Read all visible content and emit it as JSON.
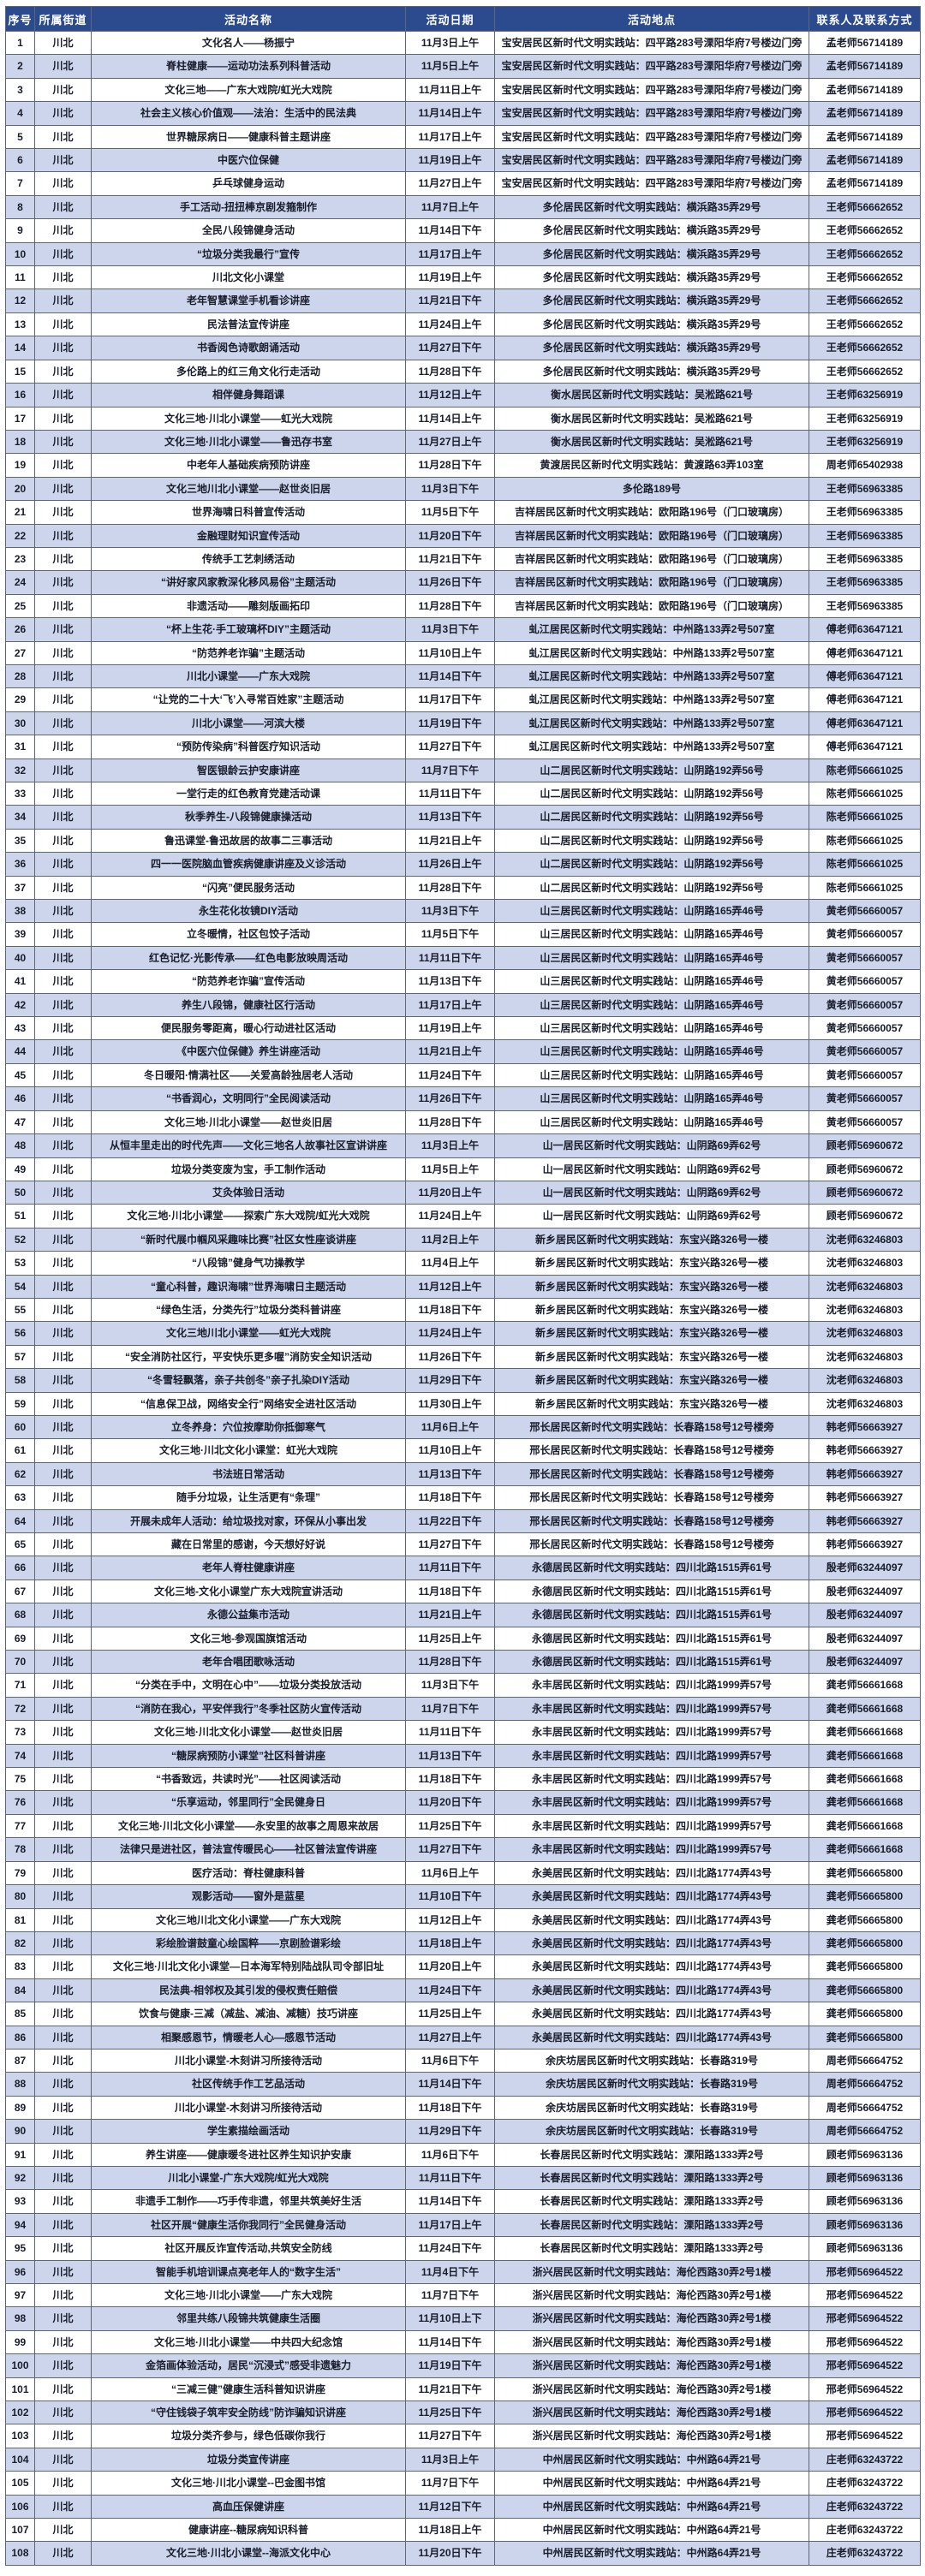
{
  "table": {
    "columns": [
      "序号",
      "所属街道",
      "活动名称",
      "活动日期",
      "活动地点",
      "联系人及联系方式"
    ],
    "rows": [
      [
        "1",
        "川北",
        "文化名人——杨振宁",
        "11月3日上午",
        "宝安居民区新时代文明实践站：四平路283号溧阳华府7号楼边门旁",
        "孟老师56714189"
      ],
      [
        "2",
        "川北",
        "脊柱健康——运动功法系列科普活动",
        "11月5日上午",
        "宝安居民区新时代文明实践站：四平路283号溧阳华府7号楼边门旁",
        "孟老师56714189"
      ],
      [
        "3",
        "川北",
        "文化三地——广东大戏院/虹光大戏院",
        "11月11日上午",
        "宝安居民区新时代文明实践站：四平路283号溧阳华府7号楼边门旁",
        "孟老师56714189"
      ],
      [
        "4",
        "川北",
        "社会主义核心价值观——法治：生活中的民法典",
        "11月14日上午",
        "宝安居民区新时代文明实践站：四平路283号溧阳华府7号楼边门旁",
        "孟老师56714189"
      ],
      [
        "5",
        "川北",
        "世界糖尿病日——健康科普主题讲座",
        "11月17日上午",
        "宝安居民区新时代文明实践站：四平路283号溧阳华府7号楼边门旁",
        "孟老师56714189"
      ],
      [
        "6",
        "川北",
        "中医穴位保健",
        "11月19日上午",
        "宝安居民区新时代文明实践站：四平路283号溧阳华府7号楼边门旁",
        "孟老师56714189"
      ],
      [
        "7",
        "川北",
        "乒乓球健身运动",
        "11月27日上午",
        "宝安居民区新时代文明实践站：四平路283号溧阳华府7号楼边门旁",
        "孟老师56714189"
      ],
      [
        "8",
        "川北",
        "手工活动-扭扭棒京剧发箍制作",
        "11月7日上午",
        "多伦居民区新时代文明实践站：横浜路35弄29号",
        "王老师56662652"
      ],
      [
        "9",
        "川北",
        "全民八段锦健身活动",
        "11月14日下午",
        "多伦居民区新时代文明实践站：横浜路35弄29号",
        "王老师56662652"
      ],
      [
        "10",
        "川北",
        "“垃圾分类我最行”宣传",
        "11月17日上午",
        "多伦居民区新时代文明实践站：横浜路35弄29号",
        "王老师56662652"
      ],
      [
        "11",
        "川北",
        "川北文化小课堂",
        "11月19日上午",
        "多伦居民区新时代文明实践站：横浜路35弄29号",
        "王老师56662652"
      ],
      [
        "12",
        "川北",
        "老年智慧课堂手机看诊讲座",
        "11月21日下午",
        "多伦居民区新时代文明实践站：横浜路35弄29号",
        "王老师56662652"
      ],
      [
        "13",
        "川北",
        "民法普法宣传讲座",
        "11月24日上午",
        "多伦居民区新时代文明实践站：横浜路35弄29号",
        "王老师56662652"
      ],
      [
        "14",
        "川北",
        "书香阅色诗歌朗诵活动",
        "11月27日下午",
        "多伦居民区新时代文明实践站：横浜路35弄29号",
        "王老师56662652"
      ],
      [
        "15",
        "川北",
        "多伦路上的红三角文化行走活动",
        "11月28日下午",
        "多伦居民区新时代文明实践站：横浜路35弄29号",
        "王老师56662652"
      ],
      [
        "16",
        "川北",
        "相伴健身舞蹈课",
        "11月12日上午",
        "衡水居民区新时代文明实践站：吴淞路621号",
        "王老师63256919"
      ],
      [
        "17",
        "川北",
        "文化三地·川北小课堂——虹光大戏院",
        "11月14日上午",
        "衡水居民区新时代文明实践站：吴淞路621号",
        "王老师63256919"
      ],
      [
        "18",
        "川北",
        "文化三地·川北小课堂——鲁迅存书室",
        "11月27日上午",
        "衡水居民区新时代文明实践站：吴淞路621号",
        "王老师63256919"
      ],
      [
        "19",
        "川北",
        "中老年人基础疾病预防讲座",
        "11月28日下午",
        "黄渡居民区新时代文明实践站：黄渡路63弄103室",
        "周老师65402938"
      ],
      [
        "20",
        "川北",
        "文化三地川北小课堂——赵世炎旧居",
        "11月3日下午",
        "多伦路189号",
        "王老师56963385"
      ],
      [
        "21",
        "川北",
        "世界海啸日科普宣传活动",
        "11月5日下午",
        "吉祥居民区新时代文明实践站：欧阳路196号（门口玻璃房）",
        "王老师56963385"
      ],
      [
        "22",
        "川北",
        "金融理财知识宣传活动",
        "11月20日下午",
        "吉祥居民区新时代文明实践站：欧阳路196号（门口玻璃房）",
        "王老师56963385"
      ],
      [
        "23",
        "川北",
        "传统手工艺刺绣活动",
        "11月21日下午",
        "吉祥居民区新时代文明实践站：欧阳路196号（门口玻璃房）",
        "王老师56963385"
      ],
      [
        "24",
        "川北",
        "“讲好家风家教深化移风易俗”主题活动",
        "11月26日下午",
        "吉祥居民区新时代文明实践站：欧阳路196号（门口玻璃房）",
        "王老师56963385"
      ],
      [
        "25",
        "川北",
        "非遗活动——雕刻版画拓印",
        "11月28日下午",
        "吉祥居民区新时代文明实践站：欧阳路196号（门口玻璃房）",
        "王老师56963385"
      ],
      [
        "26",
        "川北",
        "“杯上生花·手工玻璃杯DIY”主题活动",
        "11月3日下午",
        "虬江居民区新时代文明实践站：中州路133弄2号507室",
        "傅老师63647121"
      ],
      [
        "27",
        "川北",
        "“防范养老诈骗”主题活动",
        "11月10日上午",
        "虬江居民区新时代文明实践站：中州路133弄2号507室",
        "傅老师63647121"
      ],
      [
        "28",
        "川北",
        "川北小课堂——广东大戏院",
        "11月14日下午",
        "虬江居民区新时代文明实践站：中州路133弄2号507室",
        "傅老师63647121"
      ],
      [
        "29",
        "川北",
        "“让党的二十大‘飞’入寻常百姓家”主题活动",
        "11月17日下午",
        "虬江居民区新时代文明实践站：中州路133弄2号507室",
        "傅老师63647121"
      ],
      [
        "30",
        "川北",
        "川北小课堂——河滨大楼",
        "11月19日下午",
        "虬江居民区新时代文明实践站：中州路133弄2号507室",
        "傅老师63647121"
      ],
      [
        "31",
        "川北",
        "“预防传染病”科普医疗知识活动",
        "11月27日下午",
        "虬江居民区新时代文明实践站：中州路133弄2号507室",
        "傅老师63647121"
      ],
      [
        "32",
        "川北",
        "智医银龄云护安康讲座",
        "11月7日下午",
        "山二居民区新时代文明实践站：山阴路192弄56号",
        "陈老师56661025"
      ],
      [
        "33",
        "川北",
        "一堂行走的红色教育党建活动课",
        "11月11日下午",
        "山二居民区新时代文明实践站：山阴路192弄56号",
        "陈老师56661025"
      ],
      [
        "34",
        "川北",
        "秋季养生-八段锦健康操活动",
        "11月13日下午",
        "山二居民区新时代文明实践站：山阴路192弄56号",
        "陈老师56661025"
      ],
      [
        "35",
        "川北",
        "鲁迅课堂-鲁迅故居的故事二三事活动",
        "11月21日上午",
        "山二居民区新时代文明实践站：山阴路192弄56号",
        "陈老师56661025"
      ],
      [
        "36",
        "川北",
        "四一一医院脑血管疾病健康讲座及义诊活动",
        "11月26日上午",
        "山二居民区新时代文明实践站：山阴路192弄56号",
        "陈老师56661025"
      ],
      [
        "37",
        "川北",
        "“闪亮”便民服务活动",
        "11月28日下午",
        "山二居民区新时代文明实践站：山阴路192弄56号",
        "陈老师56661025"
      ],
      [
        "38",
        "川北",
        "永生花化妆镜DIY活动",
        "11月3日下午",
        "山三居民区新时代文明实践站：山阴路165弄46号",
        "黄老师56660057"
      ],
      [
        "39",
        "川北",
        "立冬暖情，社区包饺子活动",
        "11月5日下午",
        "山三居民区新时代文明实践站：山阴路165弄46号",
        "黄老师56660057"
      ],
      [
        "40",
        "川北",
        "红色记忆·光影传承——红色电影放映周活动",
        "11月11日下午",
        "山三居民区新时代文明实践站：山阴路165弄46号",
        "黄老师56660057"
      ],
      [
        "41",
        "川北",
        "“防范养老诈骗”宣传活动",
        "11月13日下午",
        "山三居民区新时代文明实践站：山阴路165弄46号",
        "黄老师56660057"
      ],
      [
        "42",
        "川北",
        "养生八段锦，健康社区行活动",
        "11月17日上午",
        "山三居民区新时代文明实践站：山阴路165弄46号",
        "黄老师56660057"
      ],
      [
        "43",
        "川北",
        "便民服务零距离，暖心行动进社区活动",
        "11月19日上午",
        "山三居民区新时代文明实践站：山阴路165弄46号",
        "黄老师56660057"
      ],
      [
        "44",
        "川北",
        "《中医穴位保健》养生讲座活动",
        "11月21日上午",
        "山三居民区新时代文明实践站：山阴路165弄46号",
        "黄老师56660057"
      ],
      [
        "45",
        "川北",
        "冬日暖阳·情满社区——关爱高龄独居老人活动",
        "11月24日下午",
        "山三居民区新时代文明实践站：山阴路165弄46号",
        "黄老师56660057"
      ],
      [
        "46",
        "川北",
        "“书香润心，文明同行”全民阅读活动",
        "11月26日下午",
        "山三居民区新时代文明实践站：山阴路165弄46号",
        "黄老师56660057"
      ],
      [
        "47",
        "川北",
        "文化三地·川北小课堂——赵世炎旧居",
        "11月28日下午",
        "山三居民区新时代文明实践站：山阴路165弄46号",
        "黄老师56660057"
      ],
      [
        "48",
        "川北",
        "从恒丰里走出的时代先声——文化三地名人故事社区宣讲讲座",
        "11月3日上午",
        "山一居民区新时代文明实践站：山阴路69弄62号",
        "顾老师56960672"
      ],
      [
        "49",
        "川北",
        "垃圾分类变废为宝，手工制作活动",
        "11月5日上午",
        "山一居民区新时代文明实践站：山阴路69弄62号",
        "顾老师56960672"
      ],
      [
        "50",
        "川北",
        "艾灸体验日活动",
        "11月20日上午",
        "山一居民区新时代文明实践站：山阴路69弄62号",
        "顾老师56960672"
      ],
      [
        "51",
        "川北",
        "文化三地·川北小课堂——探索广东大戏院/虹光大戏院",
        "11月24日上午",
        "山一居民区新时代文明实践站：山阴路69弄62号",
        "顾老师56960672"
      ],
      [
        "52",
        "川北",
        "“新时代展巾帼风采趣味比赛”社区女性座谈讲座",
        "11月2日上午",
        "新乡居民区新时代文明实践站：东宝兴路326号一楼",
        "沈老师63246803"
      ],
      [
        "53",
        "川北",
        "“八段锦”健身气功操教学",
        "11月4日上午",
        "新乡居民区新时代文明实践站：东宝兴路326号一楼",
        "沈老师63246803"
      ],
      [
        "54",
        "川北",
        "“童心科普，趣识海啸”世界海啸日主题活动",
        "11月12日上午",
        "新乡居民区新时代文明实践站：东宝兴路326号一楼",
        "沈老师63246803"
      ],
      [
        "55",
        "川北",
        "“绿色生活，分类先行”垃圾分类科普讲座",
        "11月18日下午",
        "新乡居民区新时代文明实践站：东宝兴路326号一楼",
        "沈老师63246803"
      ],
      [
        "56",
        "川北",
        "文化三地川北小课堂——虹光大戏院",
        "11月24日上午",
        "新乡居民区新时代文明实践站：东宝兴路326号一楼",
        "沈老师63246803"
      ],
      [
        "57",
        "川北",
        "“安全消防社区行，平安快乐更多喔”消防安全知识活动",
        "11月26日下午",
        "新乡居民区新时代文明实践站：东宝兴路326号一楼",
        "沈老师63246803"
      ],
      [
        "58",
        "川北",
        "“冬雪轻飘落，亲子共创冬”亲子扎染DIY活动",
        "11月29日下午",
        "新乡居民区新时代文明实践站：东宝兴路326号一楼",
        "沈老师63246803"
      ],
      [
        "59",
        "川北",
        "“信息保卫战，网络安全行”网络安全进社区活动",
        "11月30日上午",
        "新乡居民区新时代文明实践站：东宝兴路326号一楼",
        "沈老师63246803"
      ],
      [
        "60",
        "川北",
        "立冬养身：穴位按摩助你抵御寒气",
        "11月6日上午",
        "邢长居民区新时代文明实践站：长春路158号12号楼旁",
        "韩老师56663927"
      ],
      [
        "61",
        "川北",
        "文化三地·川北文化小课堂：虹光大戏院",
        "11月10日上午",
        "邢长居民区新时代文明实践站：长春路158号12号楼旁",
        "韩老师56663927"
      ],
      [
        "62",
        "川北",
        "书法班日常活动",
        "11月13日下午",
        "邢长居民区新时代文明实践站：长春路158号12号楼旁",
        "韩老师56663927"
      ],
      [
        "63",
        "川北",
        "随手分垃圾，让生活更有“条理”",
        "11月18日下午",
        "邢长居民区新时代文明实践站：长春路158号12号楼旁",
        "韩老师56663927"
      ],
      [
        "64",
        "川北",
        "开展未成年人活动：给垃圾找对家，环保从小事出发",
        "11月22日下午",
        "邢长居民区新时代文明实践站：长春路158号12号楼旁",
        "韩老师56663927"
      ],
      [
        "65",
        "川北",
        "藏在日常里的感谢，今天想好好说",
        "11月27日下午",
        "邢长居民区新时代文明实践站：长春路158号12号楼旁",
        "韩老师56663927"
      ],
      [
        "66",
        "川北",
        "老年人脊柱健康讲座",
        "11月11日下午",
        "永德居民区新时代文明实践站：四川北路1515弄61号",
        "殷老师63244097"
      ],
      [
        "67",
        "川北",
        "文化三地-文化小课堂广东大戏院宣讲活动",
        "11月18日下午",
        "永德居民区新时代文明实践站：四川北路1515弄61号",
        "殷老师63244097"
      ],
      [
        "68",
        "川北",
        "永德公益集市活动",
        "11月21日上午",
        "永德居民区新时代文明实践站：四川北路1515弄61号",
        "殷老师63244097"
      ],
      [
        "69",
        "川北",
        "文化三地-参观国旗馆活动",
        "11月25日上午",
        "永德居民区新时代文明实践站：四川北路1515弄61号",
        "殷老师63244097"
      ],
      [
        "70",
        "川北",
        "老年合唱团歌咏活动",
        "11月28日下午",
        "永德居民区新时代文明实践站：四川北路1515弄61号",
        "殷老师63244097"
      ],
      [
        "71",
        "川北",
        "“分类在手中，文明在心中”——垃圾分类投放活动",
        "11月3日下午",
        "永丰居民区新时代文明实践站：四川北路1999弄57号",
        "龚老师56661668"
      ],
      [
        "72",
        "川北",
        "“消防在我心，平安伴我行”冬季社区防火宣传活动",
        "11月7日下午",
        "永丰居民区新时代文明实践站：四川北路1999弄57号",
        "龚老师56661668"
      ],
      [
        "73",
        "川北",
        "文化三地·川北文化小课堂——赵世炎旧居",
        "11月11日下午",
        "永丰居民区新时代文明实践站：四川北路1999弄57号",
        "龚老师56661668"
      ],
      [
        "74",
        "川北",
        "“糖尿病预防小课堂”社区科普讲座",
        "11月13日下午",
        "永丰居民区新时代文明实践站：四川北路1999弄57号",
        "龚老师56661668"
      ],
      [
        "75",
        "川北",
        "“书香致远，共读时光”——社区阅读活动",
        "11月18日下午",
        "永丰居民区新时代文明实践站：四川北路1999弄57号",
        "龚老师56661668"
      ],
      [
        "76",
        "川北",
        "“乐享运动，邻里同行”全民健身日",
        "11月20日下午",
        "永丰居民区新时代文明实践站：四川北路1999弄57号",
        "龚老师56661668"
      ],
      [
        "77",
        "川北",
        "文化三地·川北文化小课堂——永安里的故事之周恩来故居",
        "11月25日下午",
        "永丰居民区新时代文明实践站：四川北路1999弄57号",
        "龚老师56661668"
      ],
      [
        "78",
        "川北",
        "法律只是进社区，普法宣传暖民心——社区普法宣传讲座",
        "11月27日下午",
        "永丰居民区新时代文明实践站：四川北路1999弄57号",
        "龚老师56661668"
      ],
      [
        "79",
        "川北",
        "医疗活动：脊柱健康科普",
        "11月6日上午",
        "永美居民区新时代文明实践站：四川北路1774弄43号",
        "龚老师56665800"
      ],
      [
        "80",
        "川北",
        "观影活动——窗外是蓝星",
        "11月10日下午",
        "永美居民区新时代文明实践站：四川北路1774弄43号",
        "龚老师56665800"
      ],
      [
        "81",
        "川北",
        "文化三地川北文化小课堂——广东大戏院",
        "11月12日上午",
        "永美居民区新时代文明实践站：四川北路1774弄43号",
        "龚老师56665800"
      ],
      [
        "82",
        "川北",
        "彩绘脸谱鼓童心绘国粹——京剧脸谱彩绘",
        "11月18日上午",
        "永美居民区新时代文明实践站：四川北路1774弄43号",
        "龚老师56665800"
      ],
      [
        "83",
        "川北",
        "文化三地·川北文化小课堂—日本海军特别陆战队司令部旧址",
        "11月20日上午",
        "永美居民区新时代文明实践站：四川北路1774弄43号",
        "龚老师56665800"
      ],
      [
        "84",
        "川北",
        "民法典-相邻权及其引发的侵权责任赔偿",
        "11月24日下午",
        "永美居民区新时代文明实践站：四川北路1774弄43号",
        "龚老师56665800"
      ],
      [
        "85",
        "川北",
        "饮食与健康-三减（减盐、减油、减糖）技巧讲座",
        "11月25日上午",
        "永美居民区新时代文明实践站：四川北路1774弄43号",
        "龚老师56665800"
      ],
      [
        "86",
        "川北",
        "相聚感恩节，情暖老人心—感恩节活动",
        "11月27日上午",
        "永美居民区新时代文明实践站：四川北路1774弄43号",
        "龚老师56665800"
      ],
      [
        "87",
        "川北",
        "川北小课堂-木刻讲习所接待活动",
        "11月6日下午",
        "余庆坊居民区新时代文明实践站：长春路319号",
        "周老师56664752"
      ],
      [
        "88",
        "川北",
        "社区传统手作工艺品活动",
        "11月14日下午",
        "余庆坊居民区新时代文明实践站：长春路319号",
        "周老师56664752"
      ],
      [
        "89",
        "川北",
        "川北小课堂-木刻讲习所接待活动",
        "11月18日下午",
        "余庆坊居民区新时代文明实践站：长春路319号",
        "周老师56664752"
      ],
      [
        "90",
        "川北",
        "学生素描绘画活动",
        "11月29日下午",
        "余庆坊居民区新时代文明实践站：长春路319号",
        "周老师56664752"
      ],
      [
        "91",
        "川北",
        "养生讲座——健康暖冬进社区养生知识护安康",
        "11月6日下午",
        "长春居民区新时代文明实践站：溧阳路1333弄2号",
        "顾老师56963136"
      ],
      [
        "92",
        "川北",
        "川北小课堂-广东大戏院/虹光大戏院",
        "11月11日下午",
        "长春居民区新时代文明实践站：溧阳路1333弄2号",
        "顾老师56963136"
      ],
      [
        "93",
        "川北",
        "非遗手工制作——巧手传非遗，邻里共筑美好生活",
        "11月14日下午",
        "长春居民区新时代文明实践站：溧阳路1333弄2号",
        "顾老师56963136"
      ],
      [
        "94",
        "川北",
        "社区开展“健康生活你我同行”全民健身活动",
        "11月17日上午",
        "长春居民区新时代文明实践站：溧阳路1333弄2号",
        "顾老师56963136"
      ],
      [
        "95",
        "川北",
        "社区开展反诈宣传活动,共筑安全防线",
        "11月24日下午",
        "长春居民区新时代文明实践站：溧阳路1333弄2号",
        "顾老师56963136"
      ],
      [
        "96",
        "川北",
        "智能手机培训课点亮老年人的“数字生活”",
        "11月4日下午",
        "浙兴居民区新时代文明实践站：海伦西路30弄2号1楼",
        "邢老师56964522"
      ],
      [
        "97",
        "川北",
        "文化三地·川北小课堂——广东大戏院",
        "11月7日下午",
        "浙兴居民区新时代文明实践站：海伦西路30弄2号1楼",
        "邢老师56964522"
      ],
      [
        "98",
        "川北",
        "邻里共练八段锦共筑健康生活圈",
        "11月10日上下",
        "浙兴居民区新时代文明实践站：海伦西路30弄2号1楼",
        "邢老师56964522"
      ],
      [
        "99",
        "川北",
        "文化三地·川北小课堂——中共四大纪念馆",
        "11月14日下午",
        "浙兴居民区新时代文明实践站：海伦西路30弄2号1楼",
        "邢老师56964522"
      ],
      [
        "100",
        "川北",
        "金箔画体验活动，居民“沉浸式”感受非遗魅力",
        "11月19日下午",
        "浙兴居民区新时代文明实践站：海伦西路30弄2号1楼",
        "邢老师56964522"
      ],
      [
        "101",
        "川北",
        "“三减三健”健康生活科普知识讲座",
        "11月21日下午",
        "浙兴居民区新时代文明实践站：海伦西路30弄2号1楼",
        "邢老师56964522"
      ],
      [
        "102",
        "川北",
        "“守住钱袋子筑牢安全防线”防诈骗知识讲座",
        "11月25日下午",
        "浙兴居民区新时代文明实践站：海伦西路30弄2号1楼",
        "邢老师56964522"
      ],
      [
        "103",
        "川北",
        "垃圾分类齐参与，绿色低碳你我行",
        "11月27日下午",
        "浙兴居民区新时代文明实践站：海伦西路30弄2号1楼",
        "邢老师56964522"
      ],
      [
        "104",
        "川北",
        "垃圾分类宣传讲座",
        "11月3日上午",
        "中州居民区新时代文明实践站：中州路64弄21号",
        "庄老师63243722"
      ],
      [
        "105",
        "川北",
        "文化三地·川北小课堂--巴金图书馆",
        "11月7日下午",
        "中州居民区新时代文明实践站：中州路64弄21号",
        "庄老师63243722"
      ],
      [
        "106",
        "川北",
        "高血压保健讲座",
        "11月12日下午",
        "中州居民区新时代文明实践站：中州路64弄21号",
        "庄老师63243722"
      ],
      [
        "107",
        "川北",
        "健康讲座--糖尿病知识科普",
        "11月18日上午",
        "中州居民区新时代文明实践站：中州路64弄21号",
        "庄老师63243722"
      ],
      [
        "108",
        "川北",
        "文化三地·川北小课堂--海派文化中心",
        "11月20日下午",
        "中州居民区新时代文明实践站：中州路64弄21号",
        "庄老师63243722"
      ]
    ]
  },
  "colors": {
    "header_bg": "#2b4b8e",
    "header_text": "#ffffff",
    "row_bg": "#ffffff",
    "row_alt_bg": "#ccd5eb",
    "border": "#5f6673",
    "text": "#181c2b"
  }
}
